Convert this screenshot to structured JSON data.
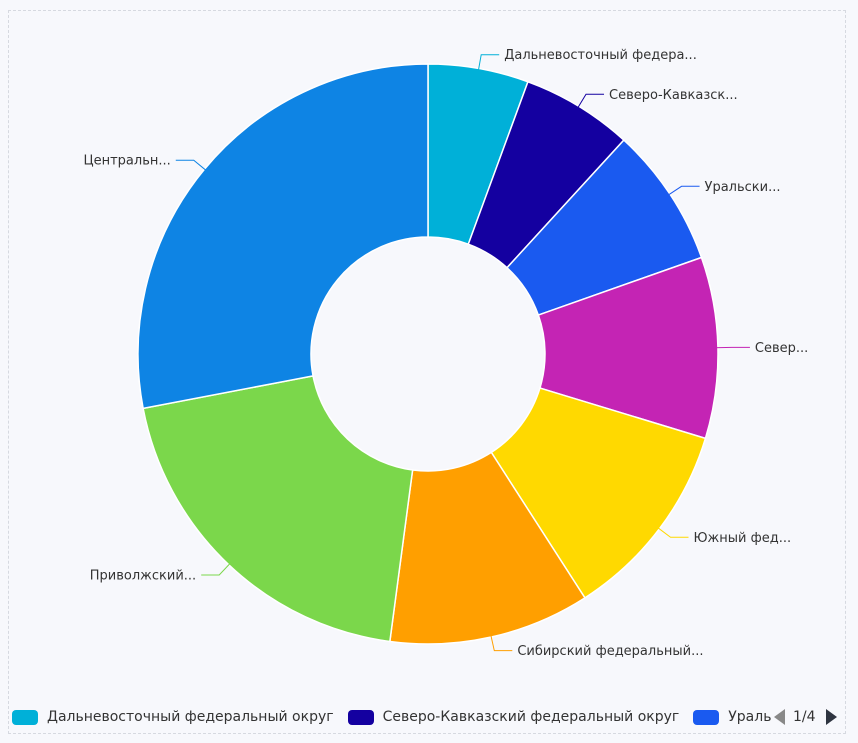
{
  "chart_data": {
    "type": "pie",
    "subtype": "donut",
    "categories": [
      "Дальневосточный федеральный округ",
      "Северо-Кавказский федеральный округ",
      "Уральский федеральный округ",
      "Северо-Западный федеральный округ",
      "Южный федеральный округ",
      "Сибирский федеральный округ",
      "Приволжский федеральный округ",
      "Центральный федеральный округ"
    ],
    "slice_labels": [
      "Дальневосточный федера...",
      "Северо-Кавказск...",
      "Уральски...",
      "Север...",
      "Южный фед...",
      "Сибирский федеральный...",
      "Приволжский...",
      "Центральн..."
    ],
    "values": [
      5.6,
      6.2,
      7.8,
      10.1,
      11.2,
      11.2,
      19.9,
      28.0
    ],
    "colors": [
      "#00b0d8",
      "#1400a0",
      "#1a5af0",
      "#c424b4",
      "#ffd900",
      "#ff9f00",
      "#7bd74b",
      "#0e84e4"
    ],
    "legend_position": "bottom",
    "legend_page": "1/4"
  }
}
